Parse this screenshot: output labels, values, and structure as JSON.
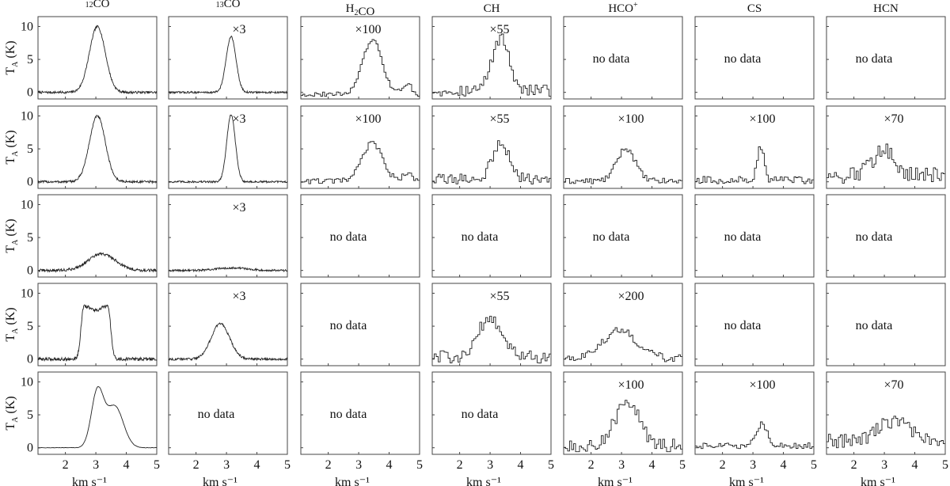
{
  "chart_data": {
    "type": "line",
    "layout": "grid",
    "rows": 5,
    "columns": [
      "12CO",
      "13CO",
      "H2CO",
      "CH",
      "HCO+",
      "CS",
      "HCN"
    ],
    "column_titles": [
      {
        "pre": "",
        "sup": "12",
        "main": "CO",
        "sub": "",
        "post": ""
      },
      {
        "pre": "",
        "sup": "13",
        "main": "CO",
        "sub": "",
        "post": ""
      },
      {
        "pre": "H",
        "sup": "",
        "main": "",
        "sub": "2",
        "post": "CO"
      },
      {
        "pre": "CH",
        "sup": "",
        "main": "",
        "sub": "",
        "post": ""
      },
      {
        "pre": "HCO",
        "sup": "+",
        "main": "",
        "sub": "",
        "post": ""
      },
      {
        "pre": "CS",
        "sup": "",
        "main": "",
        "sub": "",
        "post": ""
      },
      {
        "pre": "HCN",
        "sup": "",
        "main": "",
        "sub": "",
        "post": ""
      }
    ],
    "xlabel": "km s⁻¹",
    "ylabel": "T_A (K)",
    "ylabel_main": "T",
    "ylabel_sub": "A",
    "ylabel_rest": " (K)",
    "xlim": [
      1.1,
      5
    ],
    "ylim": [
      -1,
      11.5
    ],
    "xticks": [
      2,
      3,
      4,
      5
    ],
    "yticks": [
      0,
      5,
      10
    ],
    "no_data_label": "no data",
    "panels": [
      [
        {
          "status": "data",
          "multiplier": "",
          "style": "fine",
          "components": [
            {
              "amp": 10.0,
              "center": 3.05,
              "width": 0.26
            }
          ],
          "noise": 0.18
        },
        {
          "status": "data",
          "multiplier": "×3",
          "style": "fine",
          "components": [
            {
              "amp": 8.5,
              "center": 3.15,
              "width": 0.16
            }
          ],
          "noise": 0.15
        },
        {
          "status": "data",
          "multiplier": "×100",
          "style": "step",
          "components": [
            {
              "amp": 8.2,
              "center": 3.45,
              "width": 0.32
            },
            {
              "amp": 1.5,
              "center": 4.6,
              "width": 0.15
            }
          ],
          "baseline": -0.3,
          "noise": 0.35
        },
        {
          "status": "data",
          "multiplier": "×55",
          "style": "step",
          "components": [
            {
              "amp": 8.0,
              "center": 3.35,
              "width": 0.28
            }
          ],
          "baseline": 0.3,
          "noise": 0.9
        },
        {
          "status": "nodata"
        },
        {
          "status": "nodata"
        },
        {
          "status": "nodata"
        }
      ],
      [
        {
          "status": "data",
          "multiplier": "",
          "style": "fine",
          "components": [
            {
              "amp": 10.0,
              "center": 3.05,
              "width": 0.26
            }
          ],
          "noise": 0.18
        },
        {
          "status": "data",
          "multiplier": "×3",
          "style": "fine",
          "components": [
            {
              "amp": 10.2,
              "center": 3.15,
              "width": 0.14
            }
          ],
          "noise": 0.15
        },
        {
          "status": "data",
          "multiplier": "×100",
          "style": "step",
          "components": [
            {
              "amp": 5.8,
              "center": 3.45,
              "width": 0.33
            },
            {
              "amp": 1.2,
              "center": 4.6,
              "width": 0.15
            }
          ],
          "baseline": 0.1,
          "noise": 0.4
        },
        {
          "status": "data",
          "multiplier": "×55",
          "style": "step",
          "components": [
            {
              "amp": 5.5,
              "center": 3.35,
              "width": 0.27
            }
          ],
          "baseline": 0.4,
          "noise": 0.8
        },
        {
          "status": "data",
          "multiplier": "×100",
          "style": "step",
          "components": [
            {
              "amp": 5.0,
              "center": 3.15,
              "width": 0.3
            }
          ],
          "baseline": 0.1,
          "noise": 0.45
        },
        {
          "status": "data",
          "multiplier": "×100",
          "style": "step",
          "components": [
            {
              "amp": 4.9,
              "center": 3.25,
              "width": 0.12
            }
          ],
          "baseline": 0.2,
          "noise": 0.6
        },
        {
          "status": "data",
          "multiplier": "×70",
          "style": "step",
          "components": [
            {
              "amp": 4.2,
              "center": 3.0,
              "width": 0.35
            }
          ],
          "baseline": 1.0,
          "noise": 1.3
        }
      ],
      [
        {
          "status": "data",
          "multiplier": "",
          "style": "fine",
          "components": [
            {
              "amp": 2.5,
              "center": 3.2,
              "width": 0.45
            }
          ],
          "noise": 0.22
        },
        {
          "status": "data",
          "multiplier": "×3",
          "style": "fine",
          "components": [
            {
              "amp": 0.4,
              "center": 3.2,
              "width": 0.5
            }
          ],
          "noise": 0.15
        },
        {
          "status": "nodata"
        },
        {
          "status": "nodata"
        },
        {
          "status": "nodata"
        },
        {
          "status": "nodata"
        },
        {
          "status": "nodata"
        }
      ],
      [
        {
          "status": "data",
          "multiplier": "",
          "style": "fine",
          "components": [
            {
              "amp": 7.7,
              "center": 3.0,
              "width": 0.4,
              "flat": true
            }
          ],
          "noise": 0.25
        },
        {
          "status": "data",
          "multiplier": "×3",
          "style": "fine",
          "components": [
            {
              "amp": 5.4,
              "center": 2.8,
              "width": 0.3
            }
          ],
          "noise": 0.18
        },
        {
          "status": "nodata"
        },
        {
          "status": "data",
          "multiplier": "×55",
          "style": "step",
          "components": [
            {
              "amp": 6.2,
              "center": 3.0,
              "width": 0.38
            }
          ],
          "baseline": 0.3,
          "noise": 1.0
        },
        {
          "status": "data",
          "multiplier": "×200",
          "style": "step",
          "components": [
            {
              "amp": 4.3,
              "center": 2.95,
              "width": 0.55
            }
          ],
          "baseline": 0.1,
          "noise": 0.6
        },
        {
          "status": "nodata"
        },
        {
          "status": "nodata"
        }
      ],
      [
        {
          "status": "data",
          "multiplier": "",
          "style": "smooth",
          "components": [
            {
              "amp": 8.4,
              "center": 3.05,
              "width": 0.2
            },
            {
              "amp": 6.3,
              "center": 3.62,
              "width": 0.28
            }
          ],
          "noise": 0.03
        },
        {
          "status": "nodata"
        },
        {
          "status": "nodata"
        },
        {
          "status": "nodata"
        },
        {
          "status": "data",
          "multiplier": "×100",
          "style": "step",
          "components": [
            {
              "amp": 7.0,
              "center": 3.2,
              "width": 0.4
            }
          ],
          "baseline": 0.2,
          "noise": 1.1
        },
        {
          "status": "data",
          "multiplier": "×100",
          "style": "step",
          "components": [
            {
              "amp": 3.3,
              "center": 3.3,
              "width": 0.18
            }
          ],
          "baseline": 0.3,
          "noise": 0.45
        },
        {
          "status": "data",
          "multiplier": "×70",
          "style": "step",
          "components": [
            {
              "amp": 3.0,
              "center": 3.3,
              "width": 0.5
            }
          ],
          "baseline": 1.0,
          "noise": 1.1
        }
      ]
    ]
  }
}
